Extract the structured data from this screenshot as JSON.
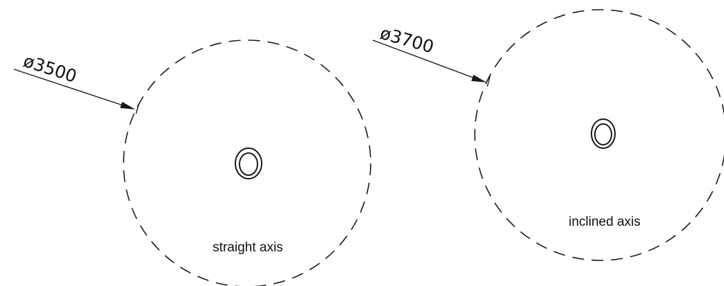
{
  "diagram": {
    "items": [
      {
        "dimension": "ø3500",
        "caption": "straight axis"
      },
      {
        "dimension": "ø3700",
        "caption": "inclined axis"
      }
    ],
    "line_color": "#1a1a1a",
    "background": "#ffffff"
  }
}
